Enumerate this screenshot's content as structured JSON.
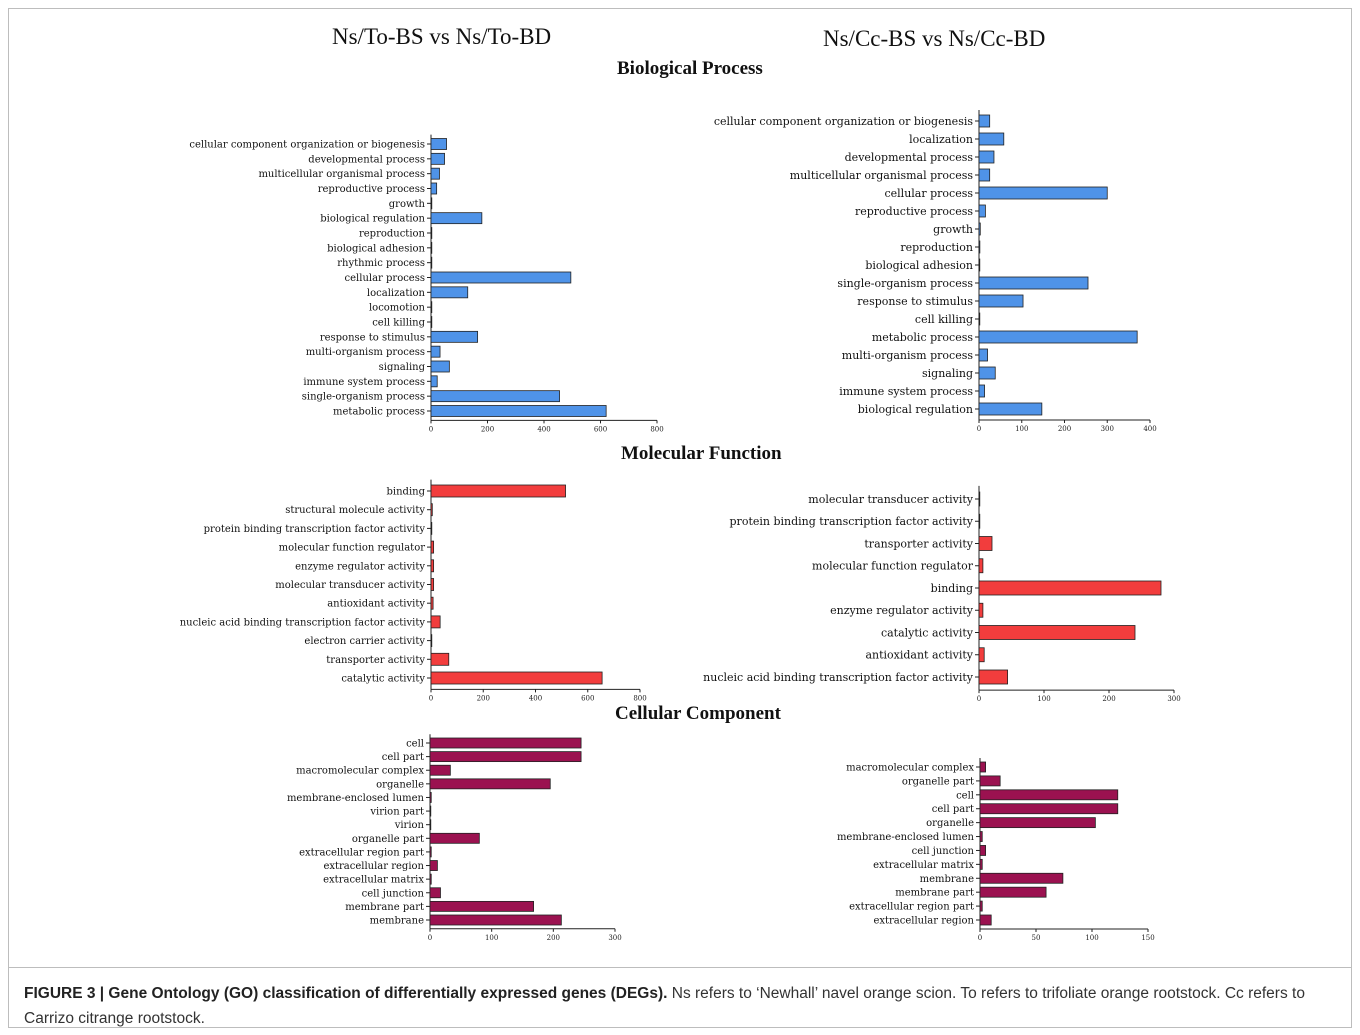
{
  "columns": {
    "left": "Ns/To-BS vs Ns/To-BD",
    "right": "Ns/Cc-BS vs Ns/Cc-BD"
  },
  "sections": {
    "bp": "Biological Process",
    "mf": "Molecular Function",
    "cc": "Cellular Component"
  },
  "caption": {
    "label": "FIGURE 3 | Gene Ontology (GO) classification of differentially expressed genes (DEGs).",
    "text": "Ns refers to ‘Newhall’ navel orange scion. To refers to trifoliate orange rootstock. Cc refers to Carrizo citrange rootstock."
  },
  "colors": {
    "bp": "#4f93e8",
    "mf": "#f23d3d",
    "cc": "#9b1250"
  },
  "chart_data": [
    {
      "type": "bar",
      "orientation": "horizontal",
      "section": "bp",
      "column": "left",
      "categories": [
        "cellular component organization or biogenesis",
        "developmental process",
        "multicellular organismal process",
        "reproductive process",
        "growth",
        "biological regulation",
        "reproduction",
        "biological adhesion",
        "rhythmic process",
        "cellular process",
        "localization",
        "locomotion",
        "cell killing",
        "response to stimulus",
        "multi-organism process",
        "signaling",
        "immune system process",
        "single-organism process",
        "metabolic process"
      ],
      "values": [
        55,
        48,
        30,
        20,
        2,
        180,
        2,
        2,
        1,
        495,
        130,
        1,
        1,
        165,
        32,
        65,
        22,
        455,
        620
      ],
      "xlim": [
        0,
        800
      ],
      "xticks": [
        0,
        200,
        400,
        600,
        800
      ]
    },
    {
      "type": "bar",
      "orientation": "horizontal",
      "section": "bp",
      "column": "right",
      "categories": [
        "cellular component organization or biogenesis",
        "localization",
        "developmental process",
        "multicellular organismal process",
        "cellular process",
        "reproductive process",
        "growth",
        "reproduction",
        "biological adhesion",
        "single-organism process",
        "response to stimulus",
        "cell killing",
        "metabolic process",
        "multi-organism process",
        "signaling",
        "immune system process",
        "biological regulation"
      ],
      "values": [
        25,
        58,
        35,
        25,
        300,
        15,
        3,
        2,
        1,
        255,
        103,
        1,
        370,
        20,
        38,
        13,
        147
      ],
      "xlim": [
        0,
        400
      ],
      "xticks": [
        0,
        100,
        200,
        300,
        400
      ]
    },
    {
      "type": "bar",
      "orientation": "horizontal",
      "section": "mf",
      "column": "left",
      "categories": [
        "binding",
        "structural molecule activity",
        "protein binding transcription factor activity",
        "molecular function regulator",
        "enzyme regulator activity",
        "molecular transducer activity",
        "antioxidant activity",
        "nucleic acid binding transcription factor activity",
        "electron carrier activity",
        "transporter activity",
        "catalytic activity"
      ],
      "values": [
        515,
        5,
        2,
        10,
        10,
        10,
        8,
        35,
        2,
        68,
        655
      ],
      "xlim": [
        0,
        800
      ],
      "xticks": [
        0,
        200,
        400,
        600,
        800
      ]
    },
    {
      "type": "bar",
      "orientation": "horizontal",
      "section": "mf",
      "column": "right",
      "categories": [
        "molecular transducer activity",
        "protein binding transcription factor activity",
        "transporter activity",
        "molecular function regulator",
        "binding",
        "enzyme regulator activity",
        "catalytic activity",
        "antioxidant activity",
        "nucleic acid binding transcription factor activity"
      ],
      "values": [
        1,
        1,
        20,
        6,
        280,
        6,
        240,
        8,
        44
      ],
      "xlim": [
        0,
        300
      ],
      "xticks": [
        0,
        100,
        200,
        300
      ]
    },
    {
      "type": "bar",
      "orientation": "horizontal",
      "section": "cc",
      "column": "left",
      "categories": [
        "cell",
        "cell part",
        "macromolecular complex",
        "organelle",
        "membrane-enclosed lumen",
        "virion part",
        "virion",
        "organelle part",
        "extracellular region part",
        "extracellular region",
        "extracellular matrix",
        "cell junction",
        "membrane part",
        "membrane"
      ],
      "values": [
        245,
        245,
        33,
        195,
        2,
        1,
        1,
        80,
        2,
        12,
        2,
        17,
        168,
        213
      ],
      "xlim": [
        0,
        300
      ],
      "xticks": [
        0,
        100,
        200,
        300
      ]
    },
    {
      "type": "bar",
      "orientation": "horizontal",
      "section": "cc",
      "column": "right",
      "categories": [
        "macromolecular complex",
        "organelle part",
        "cell",
        "cell part",
        "organelle",
        "membrane-enclosed lumen",
        "cell junction",
        "extracellular matrix",
        "membrane",
        "membrane part",
        "extracellular region part",
        "extracellular region"
      ],
      "values": [
        5,
        18,
        123,
        123,
        103,
        2,
        5,
        2,
        74,
        59,
        2,
        10
      ],
      "xlim": [
        0,
        150
      ],
      "xticks": [
        0,
        50,
        100,
        150
      ]
    }
  ]
}
